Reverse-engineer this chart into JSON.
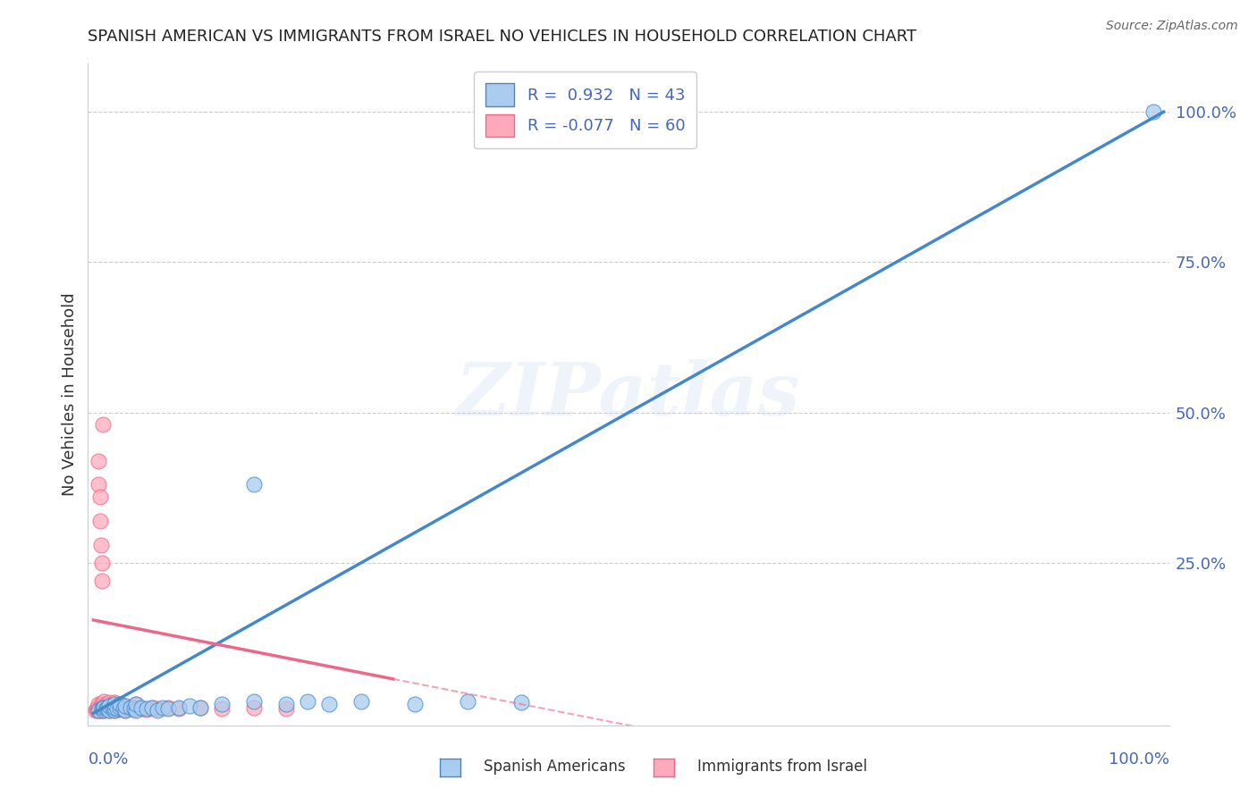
{
  "title": "SPANISH AMERICAN VS IMMIGRANTS FROM ISRAEL NO VEHICLES IN HOUSEHOLD CORRELATION CHART",
  "source": "Source: ZipAtlas.com",
  "ylabel": "No Vehicles in Household",
  "r_blue": 0.932,
  "n_blue": 43,
  "r_pink": -0.077,
  "n_pink": 60,
  "legend_label_blue": "Spanish Americans",
  "legend_label_pink": "Immigrants from Israel",
  "color_blue_fill": "#AACCEE",
  "color_pink_fill": "#FFAABB",
  "color_blue_edge": "#4488CC",
  "color_pink_edge": "#EE6688",
  "color_blue_line": "#4488CC",
  "color_pink_line": "#EE6688",
  "color_text_blue": "#4466BB",
  "watermark": "ZIPatlas",
  "bg_color": "#FFFFFF",
  "grid_color": "#CCCCCC",
  "blue_scatter_x": [
    0.005,
    0.008,
    0.009,
    0.01,
    0.01,
    0.012,
    0.013,
    0.015,
    0.015,
    0.018,
    0.02,
    0.02,
    0.02,
    0.022,
    0.025,
    0.025,
    0.028,
    0.03,
    0.03,
    0.035,
    0.038,
    0.04,
    0.04,
    0.045,
    0.05,
    0.055,
    0.06,
    0.065,
    0.07,
    0.08,
    0.09,
    0.1,
    0.12,
    0.15,
    0.18,
    0.2,
    0.22,
    0.25,
    0.3,
    0.35,
    0.4,
    0.15,
    0.99
  ],
  "blue_scatter_y": [
    0.005,
    0.008,
    0.01,
    0.005,
    0.01,
    0.008,
    0.01,
    0.005,
    0.012,
    0.008,
    0.005,
    0.01,
    0.015,
    0.008,
    0.01,
    0.015,
    0.008,
    0.005,
    0.012,
    0.01,
    0.008,
    0.005,
    0.015,
    0.01,
    0.008,
    0.01,
    0.005,
    0.01,
    0.008,
    0.01,
    0.012,
    0.01,
    0.015,
    0.02,
    0.015,
    0.02,
    0.015,
    0.02,
    0.015,
    0.02,
    0.018,
    0.38,
    1.0
  ],
  "pink_scatter_x": [
    0.002,
    0.003,
    0.004,
    0.005,
    0.005,
    0.006,
    0.007,
    0.007,
    0.008,
    0.008,
    0.009,
    0.01,
    0.01,
    0.01,
    0.01,
    0.012,
    0.012,
    0.013,
    0.014,
    0.015,
    0.015,
    0.015,
    0.016,
    0.017,
    0.018,
    0.018,
    0.019,
    0.02,
    0.02,
    0.02,
    0.022,
    0.023,
    0.025,
    0.025,
    0.028,
    0.03,
    0.03,
    0.032,
    0.035,
    0.038,
    0.04,
    0.04,
    0.045,
    0.05,
    0.055,
    0.06,
    0.07,
    0.08,
    0.1,
    0.12,
    0.15,
    0.18,
    0.005,
    0.005,
    0.006,
    0.006,
    0.007,
    0.008,
    0.008,
    0.009
  ],
  "pink_scatter_y": [
    0.005,
    0.008,
    0.005,
    0.01,
    0.015,
    0.005,
    0.008,
    0.015,
    0.005,
    0.012,
    0.008,
    0.005,
    0.01,
    0.015,
    0.02,
    0.008,
    0.015,
    0.01,
    0.012,
    0.005,
    0.01,
    0.018,
    0.008,
    0.012,
    0.006,
    0.015,
    0.01,
    0.005,
    0.01,
    0.018,
    0.008,
    0.012,
    0.006,
    0.015,
    0.01,
    0.005,
    0.012,
    0.008,
    0.01,
    0.006,
    0.008,
    0.015,
    0.008,
    0.006,
    0.01,
    0.008,
    0.01,
    0.008,
    0.01,
    0.008,
    0.01,
    0.008,
    0.42,
    0.38,
    0.36,
    0.32,
    0.28,
    0.25,
    0.22,
    0.48
  ]
}
